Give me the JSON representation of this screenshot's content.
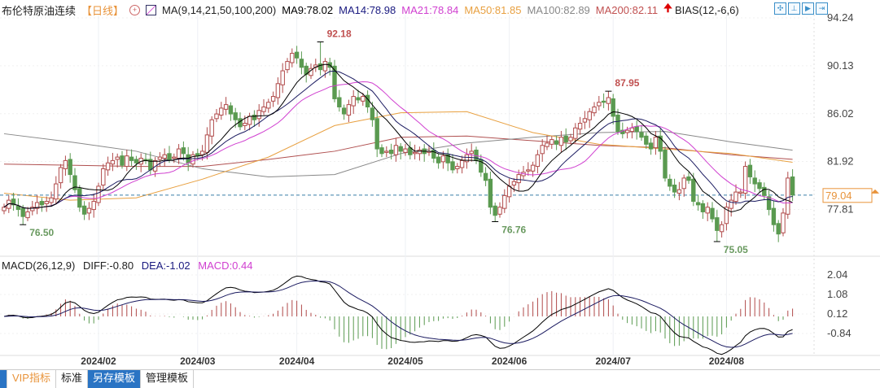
{
  "header": {
    "instrument": "布伦特原油连续",
    "period": "【日线】",
    "ma_label": "MA(9,14,21,50,100,200)",
    "ma9": "MA9:78.02",
    "ma14": "MA14:78.98",
    "ma21": "MA21:78.84",
    "ma50": "MA50:81.85",
    "ma100": "MA100:82.89",
    "ma200": "MA200:82.11",
    "bias": "BIAS(12,-6,6)"
  },
  "macd_header": {
    "label": "MACD(26,12,9)",
    "diff": "DIFF:-0.80",
    "dea": "DEA:-1.02",
    "macd": "MACD:0.44"
  },
  "tabs": [
    "VIP指标",
    "标准",
    "另存模板",
    "管理模板"
  ],
  "colors": {
    "up": "#b04a4a",
    "down": "#5a9a50",
    "ma9": "#000000",
    "ma14": "#1a1a60",
    "ma21": "#d040d0",
    "ma50": "#e8a040",
    "ma100": "#888888",
    "ma200": "#b05050",
    "last_price": "#e8933a"
  },
  "chart_data": {
    "type": "candlestick",
    "price_axis_ticks": [
      "94.24",
      "90.13",
      "86.02",
      "81.92",
      "77.81"
    ],
    "price_range": [
      77.81,
      94.24
    ],
    "macd_axis_ticks": [
      "2.04",
      "1.08",
      "0.12",
      "-0.84"
    ],
    "last_price": "79.04",
    "date_labels": [
      {
        "label": "2024/02",
        "index": 20
      },
      {
        "label": "2024/03",
        "index": 41
      },
      {
        "label": "2024/04",
        "index": 62
      },
      {
        "label": "2024/05",
        "index": 85
      },
      {
        "label": "2024/06",
        "index": 107
      },
      {
        "label": "2024/07",
        "index": 129
      },
      {
        "label": "2024/08",
        "index": 153
      }
    ],
    "annotations": [
      {
        "label": "76.50",
        "value": 76.5,
        "index": 4,
        "type": "low"
      },
      {
        "label": "92.18",
        "value": 92.18,
        "index": 67,
        "type": "high"
      },
      {
        "label": "76.76",
        "value": 76.76,
        "index": 104,
        "type": "low"
      },
      {
        "label": "87.95",
        "value": 87.95,
        "index": 128,
        "type": "high"
      },
      {
        "label": "75.05",
        "value": 75.05,
        "index": 151,
        "type": "low"
      }
    ],
    "close": [
      78.0,
      78.6,
      78.2,
      77.8,
      77.2,
      77.6,
      78.0,
      78.4,
      78.2,
      78.5,
      78.8,
      80.0,
      81.4,
      82.0,
      80.8,
      79.5,
      78.0,
      77.4,
      77.9,
      78.5,
      79.8,
      81.3,
      81.8,
      82.0,
      82.3,
      81.6,
      82.4,
      82.0,
      81.8,
      82.2,
      82.0,
      81.2,
      82.0,
      82.3,
      82.5,
      82.1,
      82.3,
      83.0,
      82.6,
      81.8,
      82.5,
      82.4,
      82.8,
      84.2,
      85.5,
      86.0,
      86.5,
      86.8,
      86.0,
      85.5,
      84.9,
      85.2,
      85.8,
      85.5,
      86.3,
      86.6,
      87.0,
      87.5,
      88.6,
      89.7,
      90.5,
      91.2,
      90.8,
      90.0,
      89.4,
      89.9,
      90.2,
      89.8,
      90.5,
      90.0,
      87.3,
      86.6,
      86.0,
      86.8,
      87.5,
      87.2,
      87.5,
      86.6,
      85.5,
      83.0,
      82.6,
      82.8,
      82.6,
      83.3,
      82.8,
      83.0,
      82.5,
      82.7,
      82.9,
      82.6,
      82.8,
      82.2,
      81.8,
      82.4,
      81.8,
      81.2,
      81.5,
      82.0,
      82.5,
      82.8,
      82.0,
      81.0,
      80.3,
      78.0,
      77.3,
      78.0,
      79.0,
      79.8,
      80.2,
      80.8,
      81.0,
      81.2,
      81.6,
      82.5,
      83.3,
      83.5,
      83.8,
      83.4,
      84.0,
      83.6,
      84.0,
      84.8,
      85.2,
      85.6,
      86.2,
      86.6,
      87.0,
      87.0,
      87.4,
      85.8,
      84.5,
      84.3,
      84.6,
      84.8,
      84.5,
      84.0,
      83.4,
      83.0,
      84.0,
      82.8,
      80.5,
      79.8,
      79.3,
      79.5,
      80.5,
      80.3,
      78.5,
      78.2,
      77.6,
      78.0,
      77.0,
      76.0,
      76.5,
      78.0,
      78.6,
      79.3,
      79.3,
      81.5,
      80.6,
      80.0,
      79.6,
      79.0,
      77.8,
      76.5,
      75.7,
      77.5,
      80.5,
      79.04
    ],
    "ma50_every14": [
      79.2,
      78.6,
      78.8,
      80.4,
      82.3,
      85.0,
      86.1,
      86.2,
      84.4,
      83.4,
      83.0,
      82.6,
      81.85
    ],
    "ma100_every14": [
      84.3,
      83.6,
      82.8,
      81.3,
      80.6,
      80.8,
      82.6,
      83.5,
      84.0,
      84.4,
      84.5,
      83.6,
      82.89
    ],
    "ma200_every14": [
      81.7,
      81.6,
      81.5,
      81.5,
      82.1,
      82.8,
      84.0,
      84.1,
      83.7,
      83.3,
      83.1,
      82.5,
      82.11
    ]
  }
}
